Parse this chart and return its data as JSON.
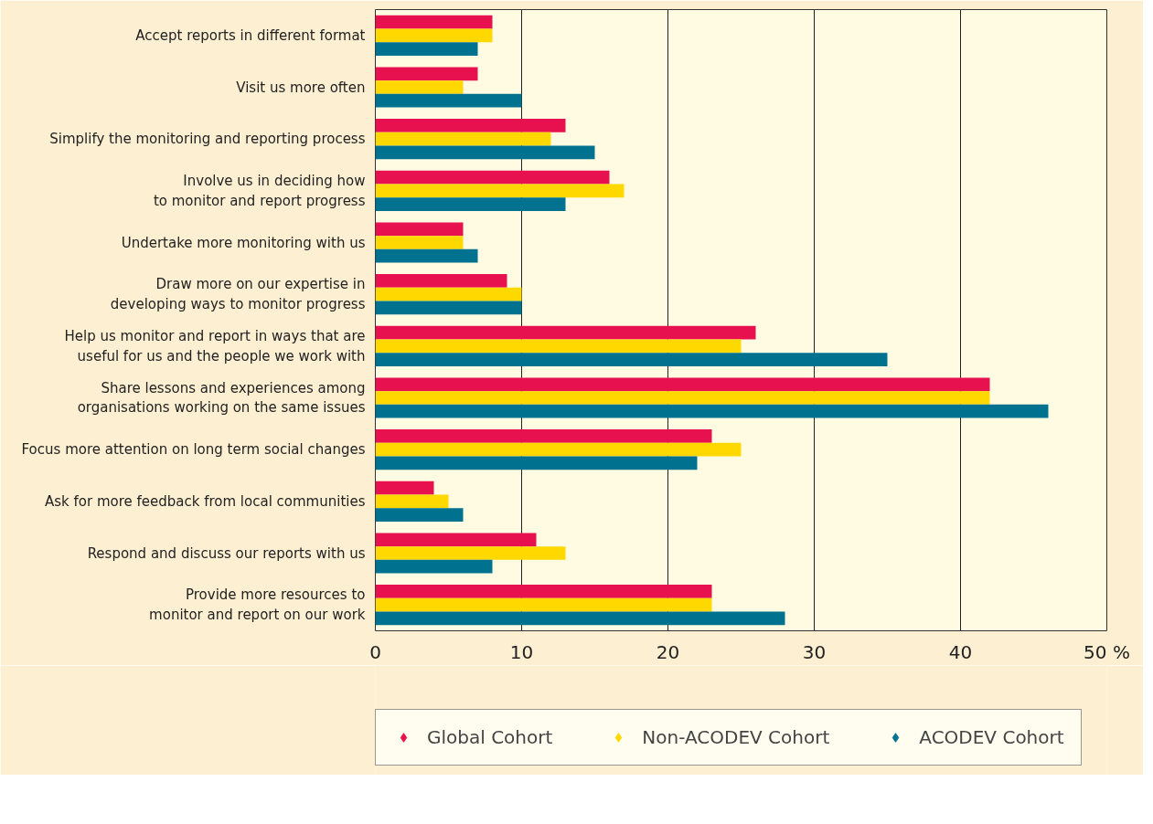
{
  "chart_data": {
    "type": "bar",
    "orientation": "horizontal",
    "categories": [
      "Accept reports in different format",
      "Visit us more often",
      "Simplify the monitoring and reporting process",
      "Involve us in deciding how\nto monitor and report progress",
      "Undertake more monitoring with us",
      "Draw more on our expertise in\ndeveloping ways to monitor progress",
      "Help us monitor and report in ways that are\nuseful for us and the people we work with",
      "Share lessons and experiences among\norganisations working on the same issues",
      "Focus more attention on long term social changes",
      "Ask for more feedback from local communities",
      "Respond and discuss our reports with us",
      "Provide more resources to\nmonitor and report on our work"
    ],
    "series": [
      {
        "name": "Global Cohort",
        "color": "#e8114f",
        "values": [
          8,
          7,
          13,
          16,
          6,
          9,
          26,
          42,
          23,
          4,
          11,
          23
        ]
      },
      {
        "name": "Non-ACODEV Cohort",
        "color": "#ffd800",
        "values": [
          8,
          6,
          12,
          17,
          6,
          10,
          25,
          42,
          25,
          5,
          13,
          23
        ]
      },
      {
        "name": "ACODEV Cohort",
        "color": "#00728f",
        "values": [
          7,
          10,
          15,
          13,
          7,
          10,
          35,
          46,
          22,
          6,
          8,
          28
        ]
      }
    ],
    "xlim": [
      0,
      50
    ],
    "xticks": [
      0,
      10,
      20,
      30,
      40,
      {
        "value": 50,
        "label": "50 %"
      }
    ],
    "grid": "x",
    "legend": "bottom"
  }
}
